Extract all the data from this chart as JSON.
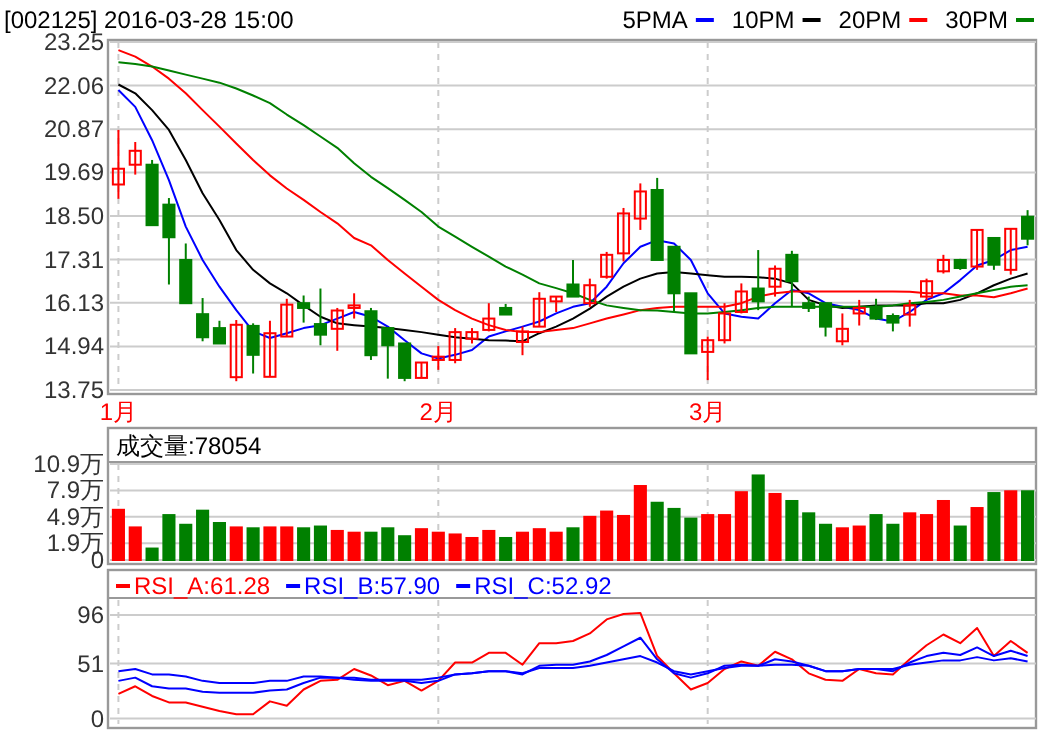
{
  "chart_data": [
    {
      "type": "candlestick",
      "title": "[002125] 2016-03-28 15:00",
      "categories": [
        "1月",
        null,
        null,
        null,
        null,
        null,
        null,
        null,
        null,
        null,
        null,
        null,
        null,
        null,
        null,
        null,
        null,
        null,
        null,
        "2月",
        null,
        null,
        null,
        null,
        null,
        null,
        null,
        null,
        null,
        null,
        null,
        null,
        null,
        null,
        null,
        "3月",
        null,
        null,
        null,
        null,
        null,
        null,
        null,
        null,
        null,
        null,
        null,
        null,
        null,
        null,
        null,
        null,
        null,
        null,
        null
      ],
      "ohlc": [
        [
          19.36,
          20.85,
          18.97,
          19.79
        ],
        [
          19.9,
          20.52,
          19.63,
          20.28
        ],
        [
          19.9,
          20.03,
          18.25,
          18.25
        ],
        [
          18.81,
          18.99,
          16.63,
          17.92
        ],
        [
          17.3,
          17.75,
          16.12,
          16.12
        ],
        [
          15.82,
          16.26,
          15.08,
          15.19
        ],
        [
          15.44,
          15.64,
          15.02,
          15.02
        ],
        [
          14.1,
          15.66,
          13.99,
          15.53
        ],
        [
          15.5,
          15.57,
          14.2,
          14.71
        ],
        [
          14.11,
          15.64,
          14.11,
          15.3
        ],
        [
          15.21,
          16.24,
          15.21,
          16.08
        ],
        [
          16.12,
          16.33,
          15.59,
          15.99
        ],
        [
          15.55,
          16.52,
          14.97,
          15.26
        ],
        [
          15.42,
          15.99,
          14.82,
          15.92
        ],
        [
          15.99,
          16.39,
          15.7,
          16.06
        ],
        [
          15.9,
          15.99,
          14.57,
          14.7
        ],
        [
          15.44,
          15.44,
          14.06,
          14.97
        ],
        [
          15.02,
          15.02,
          13.99,
          14.08
        ],
        [
          14.08,
          14.5,
          14.08,
          14.5
        ],
        [
          14.57,
          14.95,
          14.3,
          14.66
        ],
        [
          14.57,
          15.44,
          14.48,
          15.33
        ],
        [
          15.15,
          15.44,
          15.02,
          15.33
        ],
        [
          15.39,
          16.12,
          15.35,
          15.7
        ],
        [
          15.99,
          16.1,
          15.81,
          15.81
        ],
        [
          15.06,
          15.48,
          14.7,
          15.35
        ],
        [
          15.48,
          16.42,
          15.48,
          16.24
        ],
        [
          16.17,
          16.3,
          15.88,
          16.3
        ],
        [
          16.63,
          17.3,
          16.3,
          16.3
        ],
        [
          16.12,
          16.79,
          16.02,
          16.61
        ],
        [
          16.84,
          17.52,
          16.79,
          17.44
        ],
        [
          17.48,
          18.72,
          17.26,
          18.57
        ],
        [
          18.43,
          19.39,
          18.12,
          19.17
        ],
        [
          19.21,
          19.54,
          17.3,
          17.3
        ],
        [
          17.66,
          17.66,
          15.88,
          16.39
        ],
        [
          16.39,
          16.39,
          14.75,
          14.75
        ],
        [
          14.79,
          15.21,
          14.02,
          15.11
        ],
        [
          15.11,
          16.12,
          15.02,
          15.84
        ],
        [
          15.88,
          16.66,
          15.84,
          16.44
        ],
        [
          16.52,
          17.57,
          15.93,
          16.17
        ],
        [
          16.57,
          17.15,
          16.3,
          17.06
        ],
        [
          17.44,
          17.55,
          16.02,
          16.72
        ],
        [
          16.12,
          16.3,
          15.88,
          15.99
        ],
        [
          16.12,
          16.12,
          15.21,
          15.48
        ],
        [
          15.08,
          15.84,
          14.97,
          15.42
        ],
        [
          15.84,
          16.21,
          15.51,
          15.99
        ],
        [
          16.02,
          16.24,
          15.66,
          15.7
        ],
        [
          15.77,
          15.84,
          15.35,
          15.59
        ],
        [
          15.81,
          16.21,
          15.48,
          16.06
        ],
        [
          16.3,
          16.79,
          16.21,
          16.72
        ],
        [
          16.99,
          17.44,
          16.93,
          17.3
        ],
        [
          17.3,
          17.33,
          17.03,
          17.08
        ],
        [
          17.12,
          18.12,
          17.03,
          18.12
        ],
        [
          17.9,
          17.9,
          17.03,
          17.17
        ],
        [
          17.03,
          18.15,
          16.9,
          18.15
        ],
        [
          18.48,
          18.66,
          17.7,
          17.88
        ]
      ],
      "colors": [
        "#ff0000",
        "#ff0000",
        "#008000",
        "#008000",
        "#008000",
        "#008000",
        "#008000",
        "#ff0000",
        "#008000",
        "#ff0000",
        "#ff0000",
        "#008000",
        "#008000",
        "#ff0000",
        "#ff0000",
        "#008000",
        "#008000",
        "#008000",
        "#ff0000",
        "#ff0000",
        "#ff0000",
        "#ff0000",
        "#ff0000",
        "#008000",
        "#ff0000",
        "#ff0000",
        "#ff0000",
        "#008000",
        "#ff0000",
        "#ff0000",
        "#ff0000",
        "#ff0000",
        "#008000",
        "#008000",
        "#008000",
        "#ff0000",
        "#ff0000",
        "#ff0000",
        "#008000",
        "#ff0000",
        "#008000",
        "#008000",
        "#008000",
        "#ff0000",
        "#ff0000",
        "#008000",
        "#008000",
        "#ff0000",
        "#ff0000",
        "#ff0000",
        "#008000",
        "#ff0000",
        "#008000",
        "#ff0000",
        "#008000"
      ],
      "series": [
        {
          "name": "5PMA",
          "type": "line",
          "color": "#0000ff",
          "values": [
            21.94,
            21.48,
            20.57,
            19.48,
            18.21,
            17.3,
            16.57,
            15.93,
            15.35,
            15.17,
            15.3,
            15.44,
            15.52,
            15.7,
            15.88,
            15.75,
            15.48,
            15.11,
            14.75,
            14.61,
            14.71,
            14.84,
            15.21,
            15.35,
            15.48,
            15.62,
            15.84,
            16.02,
            16.12,
            16.57,
            17.21,
            17.66,
            17.84,
            17.75,
            17.3,
            16.39,
            15.84,
            15.75,
            15.7,
            16.12,
            16.48,
            16.39,
            16.12,
            16.02,
            15.93,
            15.7,
            15.62,
            15.88,
            16.21,
            16.39,
            16.75,
            17.15,
            17.3,
            17.57,
            17.66
          ]
        },
        {
          "name": "10PM",
          "type": "line",
          "color": "#000000",
          "values": [
            22.09,
            21.85,
            21.39,
            20.85,
            20.03,
            19.12,
            18.39,
            17.57,
            17.03,
            16.66,
            16.39,
            16.06,
            15.75,
            15.57,
            15.52,
            15.48,
            15.44,
            15.39,
            15.33,
            15.26,
            15.19,
            15.15,
            15.11,
            15.1,
            15.08,
            15.3,
            15.48,
            15.7,
            15.97,
            16.3,
            16.57,
            16.79,
            16.93,
            16.97,
            16.93,
            16.88,
            16.84,
            16.84,
            16.83,
            16.79,
            16.66,
            16.21,
            16.06,
            15.99,
            16.02,
            16.06,
            16.06,
            16.06,
            16.12,
            16.12,
            16.21,
            16.39,
            16.61,
            16.79,
            16.93
          ]
        },
        {
          "name": "20PM",
          "type": "line",
          "color": "#ff0000",
          "values": [
            23.03,
            22.85,
            22.58,
            22.25,
            21.85,
            21.39,
            20.94,
            20.48,
            20.03,
            19.61,
            19.25,
            18.94,
            18.61,
            18.3,
            17.9,
            17.7,
            17.3,
            16.93,
            16.57,
            16.21,
            15.93,
            15.7,
            15.52,
            15.39,
            15.33,
            15.33,
            15.39,
            15.44,
            15.57,
            15.7,
            15.81,
            15.93,
            15.99,
            16.02,
            16.02,
            16.02,
            16.02,
            16.12,
            16.3,
            16.39,
            16.44,
            16.44,
            16.44,
            16.44,
            16.44,
            16.44,
            16.44,
            16.43,
            16.39,
            16.39,
            16.33,
            16.33,
            16.28,
            16.39,
            16.52
          ]
        },
        {
          "name": "30PM",
          "type": "line",
          "color": "#008000",
          "values": [
            22.7,
            22.65,
            22.58,
            22.47,
            22.36,
            22.25,
            22.14,
            21.98,
            21.79,
            21.58,
            21.27,
            20.98,
            20.67,
            20.36,
            19.94,
            19.57,
            19.26,
            18.94,
            18.61,
            18.21,
            17.94,
            17.66,
            17.39,
            17.12,
            16.9,
            16.66,
            16.53,
            16.39,
            16.21,
            16.06,
            15.99,
            15.93,
            15.92,
            15.88,
            15.84,
            15.84,
            15.88,
            15.93,
            15.99,
            16.02,
            16.02,
            16.02,
            16.02,
            16.02,
            16.02,
            16.02,
            16.06,
            16.12,
            16.15,
            16.21,
            16.3,
            16.39,
            16.48,
            16.57,
            16.61
          ]
        }
      ],
      "ylim": [
        13.75,
        23.25
      ],
      "yticks": [
        {
          "value": 13.75,
          "label": "13.75"
        },
        {
          "value": 14.94,
          "label": "14.94"
        },
        {
          "value": 16.13,
          "label": "16.13"
        },
        {
          "value": 17.31,
          "label": "17.31"
        },
        {
          "value": 18.5,
          "label": "18.50"
        },
        {
          "value": 19.69,
          "label": "19.69"
        },
        {
          "value": 20.87,
          "label": "20.87"
        },
        {
          "value": 22.06,
          "label": "22.06"
        },
        {
          "value": 23.25,
          "label": "23.25"
        }
      ],
      "grid": true,
      "legend": "top right"
    },
    {
      "type": "bar",
      "title": "成交量:78054",
      "categories": [
        null,
        null,
        null,
        null,
        null,
        null,
        null,
        null,
        null,
        null,
        null,
        null,
        null,
        null,
        null,
        null,
        null,
        null,
        null,
        null,
        null,
        null,
        null,
        null,
        null,
        null,
        null,
        null,
        null,
        null,
        null,
        null,
        null,
        null,
        null,
        null,
        null,
        null,
        null,
        null,
        null,
        null,
        null,
        null,
        null,
        null,
        null,
        null,
        null,
        null,
        null,
        null,
        null,
        null,
        null
      ],
      "values": [
        5.7,
        3.7,
        1.3,
        5.1,
        4.0,
        5.6,
        4.2,
        3.7,
        3.6,
        3.7,
        3.7,
        3.6,
        3.8,
        3.3,
        3.1,
        3.1,
        3.6,
        2.7,
        3.5,
        3.1,
        2.9,
        2.5,
        3.3,
        2.5,
        3.1,
        3.5,
        3.1,
        3.6,
        4.9,
        5.5,
        5.0,
        8.4,
        6.5,
        5.8,
        4.7,
        5.1,
        5.1,
        7.7,
        9.6,
        7.5,
        6.7,
        5.3,
        4.0,
        3.6,
        3.8,
        5.1,
        4.0,
        5.3,
        5.1,
        6.7,
        3.8,
        5.9,
        7.6,
        7.8,
        7.8
      ],
      "colors": [
        "#ff0000",
        "#ff0000",
        "#008000",
        "#008000",
        "#008000",
        "#008000",
        "#008000",
        "#ff0000",
        "#008000",
        "#ff0000",
        "#ff0000",
        "#008000",
        "#008000",
        "#ff0000",
        "#ff0000",
        "#008000",
        "#008000",
        "#008000",
        "#ff0000",
        "#ff0000",
        "#ff0000",
        "#ff0000",
        "#ff0000",
        "#008000",
        "#ff0000",
        "#ff0000",
        "#ff0000",
        "#008000",
        "#ff0000",
        "#ff0000",
        "#ff0000",
        "#ff0000",
        "#008000",
        "#008000",
        "#008000",
        "#ff0000",
        "#ff0000",
        "#ff0000",
        "#008000",
        "#ff0000",
        "#008000",
        "#008000",
        "#008000",
        "#ff0000",
        "#ff0000",
        "#008000",
        "#008000",
        "#ff0000",
        "#ff0000",
        "#ff0000",
        "#008000",
        "#ff0000",
        "#008000",
        "#ff0000",
        "#008000"
      ],
      "ylim": [
        0,
        10.9
      ],
      "yticks": [
        0,
        {
          "value": 1.9,
          "label": "1.9万"
        },
        {
          "value": 4.9,
          "label": "4.9万"
        },
        {
          "value": 7.9,
          "label": "7.9万"
        },
        {
          "value": 10.9,
          "label": "10.9万"
        }
      ],
      "grid": true
    },
    {
      "type": "line",
      "categories": [
        null,
        null,
        null,
        null,
        null,
        null,
        null,
        null,
        null,
        null,
        null,
        null,
        null,
        null,
        null,
        null,
        null,
        null,
        null,
        null,
        null,
        null,
        null,
        null,
        null,
        null,
        null,
        null,
        null,
        null,
        null,
        null,
        null,
        null,
        null,
        null,
        null,
        null,
        null,
        null,
        null,
        null,
        null,
        null,
        null,
        null,
        null,
        null,
        null,
        null,
        null,
        null,
        null,
        null,
        null
      ],
      "series": [
        {
          "name": "RSI_A:61.28",
          "color": "#ff0000",
          "values": [
            23,
            30,
            21,
            15,
            15,
            11,
            7,
            4,
            4,
            16,
            12,
            27,
            35,
            36,
            46,
            40,
            31,
            35,
            26,
            35,
            52,
            52,
            61,
            61,
            50,
            70,
            70,
            72,
            79,
            92,
            97,
            98,
            58,
            42,
            27,
            33,
            46,
            53,
            49,
            62,
            55,
            42,
            36,
            35,
            46,
            42,
            41,
            55,
            68,
            78,
            70,
            84,
            58,
            72,
            61
          ]
        },
        {
          "name": "RSI_B:57.90",
          "color": "#0000ff",
          "values": [
            35,
            38,
            30,
            28,
            28,
            25,
            24,
            24,
            24,
            26,
            27,
            33,
            38,
            38,
            36,
            35,
            35,
            35,
            33,
            35,
            41,
            42,
            44,
            44,
            41,
            49,
            50,
            50,
            53,
            59,
            67,
            75,
            55,
            42,
            38,
            42,
            49,
            50,
            49,
            55,
            53,
            49,
            44,
            44,
            46,
            46,
            44,
            52,
            58,
            61,
            59,
            66,
            58,
            63,
            58
          ]
        },
        {
          "name": "RSI_C:52.92",
          "color": "#0000ff",
          "values": [
            44,
            46,
            41,
            41,
            39,
            35,
            33,
            33,
            33,
            35,
            35,
            39,
            39,
            38,
            38,
            36,
            36,
            36,
            36,
            38,
            41,
            42,
            44,
            44,
            42,
            47,
            47,
            47,
            49,
            52,
            55,
            58,
            52,
            44,
            41,
            44,
            47,
            49,
            49,
            50,
            50,
            49,
            44,
            44,
            46,
            46,
            46,
            50,
            52,
            54,
            54,
            57,
            54,
            56,
            53
          ]
        }
      ],
      "ylim": [
        -5,
        110
      ],
      "yticks": [
        0,
        51,
        96
      ],
      "grid": true,
      "legend": "top left"
    }
  ]
}
